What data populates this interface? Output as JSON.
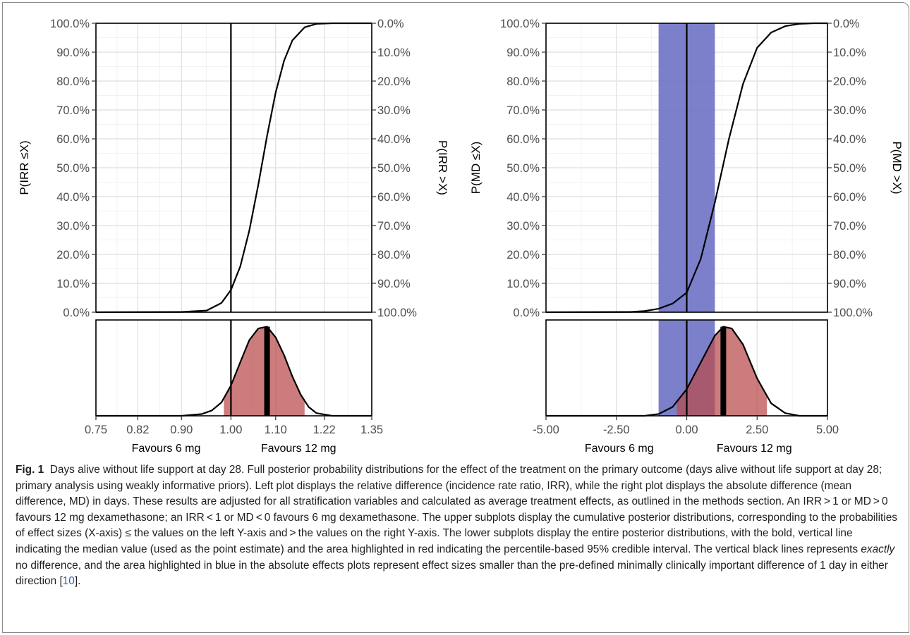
{
  "figure": {
    "caption": {
      "label": "Fig. 1",
      "title": "Days alive without life support at day 28.",
      "text_before_em": " Full posterior probability distributions for the effect of the treatment on the primary outcome (days alive without life support at day 28; primary analysis using weakly informative priors). Left plot displays the relative difference (incidence rate ratio, IRR), while the right plot displays the absolute difference (mean difference, MD) in days. These results are adjusted for all stratification variables and calculated as average treatment effects, as outlined in the methods section. An IRR > 1 or MD > 0 favours 12 mg dexamethasone; an IRR < 1 or MD < 0 favours 6 mg dexamethasone. The upper subplots display the cumulative posterior distributions, corresponding to the probabilities of effect sizes (X-axis) ≤ the values on the left Y-axis and > the values on the right Y-axis. The lower subplots display the entire posterior distributions, with the bold, vertical line indicating the median value (used as the point estimate) and the area highlighted in red indicating the percentile-based 95% credible interval. The vertical black lines represents ",
      "emphasis": "exactly",
      "text_after_em": " no difference, and the area highlighted in blue in the absolute effects plots represent effect sizes smaller than the pre-defined minimally clinically important difference of 1 day in either direction [",
      "ref": "10",
      "text_end": "]."
    }
  },
  "chart_data": [
    {
      "type": "line",
      "panel": "left",
      "effect": "IRR",
      "xscale": "log",
      "x_ticks": [
        "0.75",
        "0.82",
        "0.90",
        "1.00",
        "1.10",
        "1.22",
        "1.35"
      ],
      "x_tick_values": [
        0.75,
        0.82,
        0.9,
        1.0,
        1.1,
        1.22,
        1.35
      ],
      "xlim": [
        0.75,
        1.35
      ],
      "ylabel_left": "P(IRR ≤X)",
      "ylabel_right": "P(IRR >X)",
      "yticks_left": [
        "100.0%",
        "90.0%",
        "80.0%",
        "70.0%",
        "60.0%",
        "50.0%",
        "40.0%",
        "30.0%",
        "20.0%",
        "10.0%",
        "0.0%"
      ],
      "yticks_right": [
        "0.0%",
        "10.0%",
        "20.0%",
        "30.0%",
        "40.0%",
        "50.0%",
        "60.0%",
        "70.0%",
        "80.0%",
        "90.0%",
        "100.0%"
      ],
      "favours_left": "Favours 6 mg",
      "favours_right": "Favours 12 mg",
      "reference_x": 1.0,
      "cumulative": {
        "x": [
          0.9,
          0.95,
          0.98,
          1.0,
          1.02,
          1.04,
          1.06,
          1.08,
          1.1,
          1.12,
          1.14,
          1.17,
          1.2,
          1.24
        ],
        "y": [
          0.001,
          0.006,
          0.032,
          0.077,
          0.158,
          0.283,
          0.441,
          0.61,
          0.76,
          0.871,
          0.941,
          0.986,
          0.998,
          1.0
        ]
      },
      "density": {
        "x": [
          0.9,
          0.94,
          0.96,
          0.98,
          1.0,
          1.02,
          1.04,
          1.06,
          1.08,
          1.1,
          1.12,
          1.14,
          1.16,
          1.18,
          1.2,
          1.24
        ],
        "y": [
          0.0,
          0.02,
          0.06,
          0.15,
          0.34,
          0.6,
          0.85,
          0.98,
          1.0,
          0.88,
          0.68,
          0.44,
          0.24,
          0.1,
          0.03,
          0.0
        ]
      },
      "median": 1.08,
      "ci95": [
        0.985,
        1.17
      ]
    },
    {
      "type": "line",
      "panel": "right",
      "effect": "MD",
      "x_ticks": [
        "-5.00",
        "-2.50",
        "0.00",
        "2.50",
        "5.00"
      ],
      "x_tick_values": [
        -5.0,
        -2.5,
        0.0,
        2.5,
        5.0
      ],
      "xlim": [
        -5.0,
        5.0
      ],
      "ylabel_left": "P(MD ≤X)",
      "ylabel_right": "P(MD >X)",
      "yticks_left": [
        "100.0%",
        "90.0%",
        "80.0%",
        "70.0%",
        "60.0%",
        "50.0%",
        "40.0%",
        "30.0%",
        "20.0%",
        "10.0%",
        "0.0%"
      ],
      "yticks_right": [
        "0.0%",
        "10.0%",
        "20.0%",
        "30.0%",
        "40.0%",
        "50.0%",
        "60.0%",
        "70.0%",
        "80.0%",
        "90.0%",
        "100.0%"
      ],
      "favours_left": "Favours 6 mg",
      "favours_right": "Favours 12 mg",
      "reference_x": 0.0,
      "mcid_band": [
        -1.0,
        1.0
      ],
      "cumulative": {
        "x": [
          -2.0,
          -1.5,
          -1.0,
          -0.5,
          0.0,
          0.5,
          1.0,
          1.5,
          2.0,
          2.5,
          3.0,
          3.5,
          4.0,
          4.5
        ],
        "y": [
          0.001,
          0.004,
          0.012,
          0.03,
          0.068,
          0.185,
          0.38,
          0.6,
          0.79,
          0.915,
          0.968,
          0.99,
          0.998,
          1.0
        ]
      },
      "density": {
        "x": [
          -1.5,
          -1.0,
          -0.5,
          0.0,
          0.5,
          1.0,
          1.3,
          1.6,
          2.0,
          2.5,
          3.0,
          3.5,
          4.0
        ],
        "y": [
          0.0,
          0.02,
          0.1,
          0.3,
          0.6,
          0.9,
          1.0,
          0.98,
          0.8,
          0.42,
          0.14,
          0.03,
          0.0
        ]
      },
      "median": 1.3,
      "ci95": [
        -0.35,
        2.85
      ]
    }
  ]
}
